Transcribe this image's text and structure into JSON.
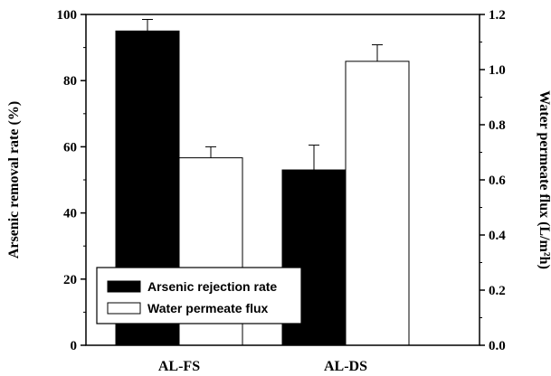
{
  "chart_data": {
    "type": "bar",
    "categories": [
      "AL-FS",
      "AL-DS"
    ],
    "series": [
      {
        "name": "Arsenic rejection rate",
        "axis": "left",
        "fill": "#000000",
        "values": [
          95,
          53
        ],
        "errors": [
          3.5,
          7.5
        ]
      },
      {
        "name": "Water permeate flux",
        "axis": "right",
        "fill": "#ffffff",
        "values": [
          0.68,
          1.03
        ],
        "errors": [
          0.04,
          0.06
        ]
      }
    ],
    "ylabel_left": "Arsenic removal rate (%)",
    "ylabel_right": "Water permeate flux (L/m²h)",
    "ylim_left": [
      0,
      100
    ],
    "ylim_right": [
      0,
      1.2
    ],
    "yticks_left": [
      "0",
      "20",
      "40",
      "60",
      "80",
      "100"
    ],
    "yticks_right": [
      "0.0",
      "0.2",
      "0.4",
      "0.6",
      "0.8",
      "1.0",
      "1.2"
    ],
    "legend_position": "bottom-left",
    "grid": false
  }
}
